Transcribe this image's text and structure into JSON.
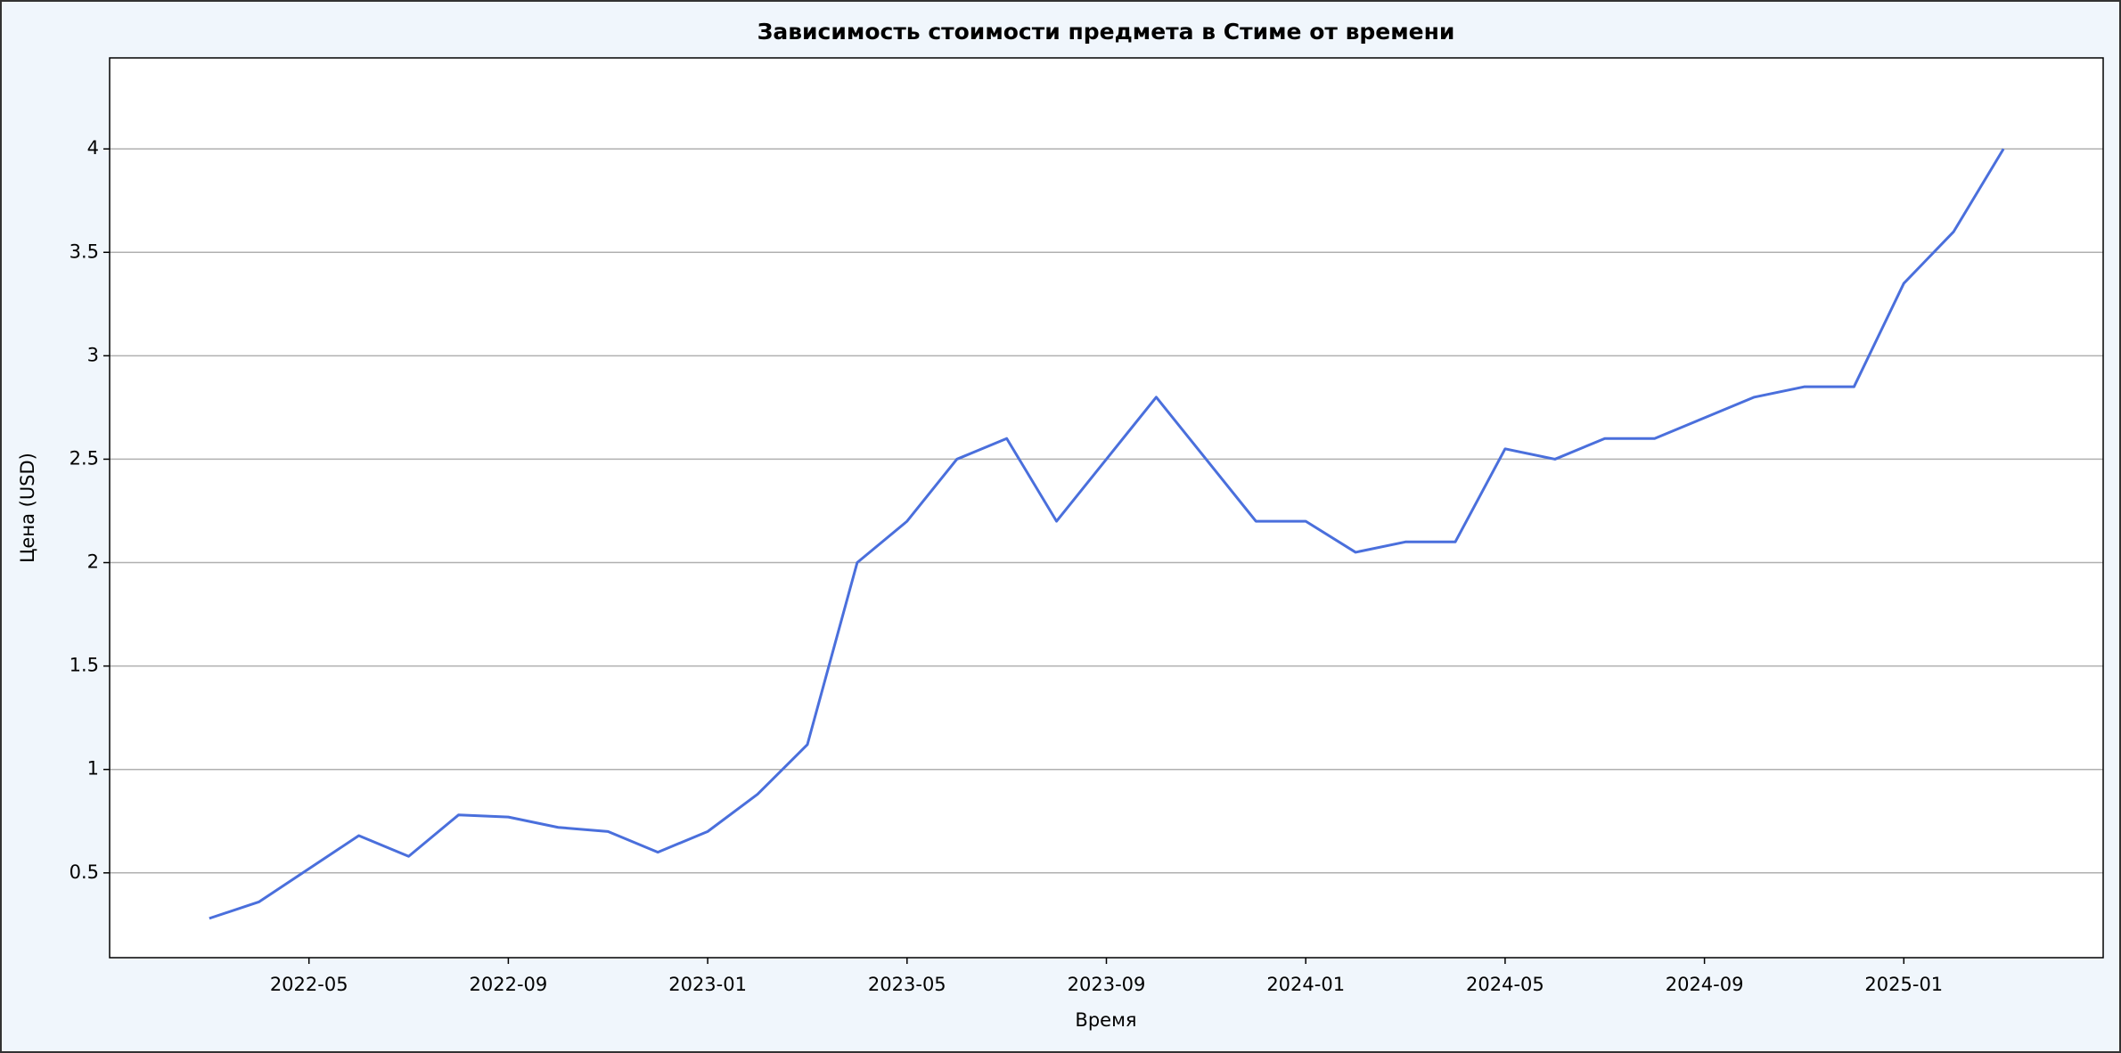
{
  "chart_data": {
    "type": "line",
    "title": "Зависимость стоимости предмета в Стиме от времени",
    "xlabel": "Время",
    "ylabel": "Цена (USD)",
    "x": [
      "2022-03",
      "2022-04",
      "2022-05",
      "2022-06",
      "2022-07",
      "2022-08",
      "2022-09",
      "2022-10",
      "2022-11",
      "2022-12",
      "2023-01",
      "2023-02",
      "2023-03",
      "2023-04",
      "2023-05",
      "2023-06",
      "2023-07",
      "2023-08",
      "2023-09",
      "2023-10",
      "2023-11",
      "2023-12",
      "2024-01",
      "2024-02",
      "2024-03",
      "2024-04",
      "2024-05",
      "2024-06",
      "2024-07",
      "2024-08",
      "2024-09",
      "2024-10",
      "2024-11",
      "2024-12",
      "2025-01",
      "2025-02",
      "2025-03"
    ],
    "series": [
      {
        "color": "#4a6fdc",
        "values": [
          0.28,
          0.36,
          0.52,
          0.68,
          0.58,
          0.78,
          0.77,
          0.72,
          0.7,
          0.6,
          0.7,
          0.88,
          1.12,
          2.0,
          2.2,
          2.5,
          2.6,
          2.2,
          2.5,
          2.8,
          2.5,
          2.2,
          2.2,
          2.05,
          2.1,
          2.1,
          2.55,
          2.5,
          2.6,
          2.6,
          2.7,
          2.8,
          2.85,
          2.85,
          3.35,
          3.6,
          4.0
        ]
      }
    ],
    "xlim": [
      "2022-01",
      "2025-05"
    ],
    "xticks": [
      "2022-05",
      "2022-09",
      "2023-01",
      "2023-05",
      "2023-09",
      "2024-01",
      "2024-05",
      "2024-09",
      "2025-01"
    ],
    "ylim": [
      0.09,
      4.44
    ],
    "yticks": [
      0.5,
      1.0,
      1.5,
      2.0,
      2.5,
      3.0,
      3.5,
      4.0
    ],
    "grid": true
  }
}
